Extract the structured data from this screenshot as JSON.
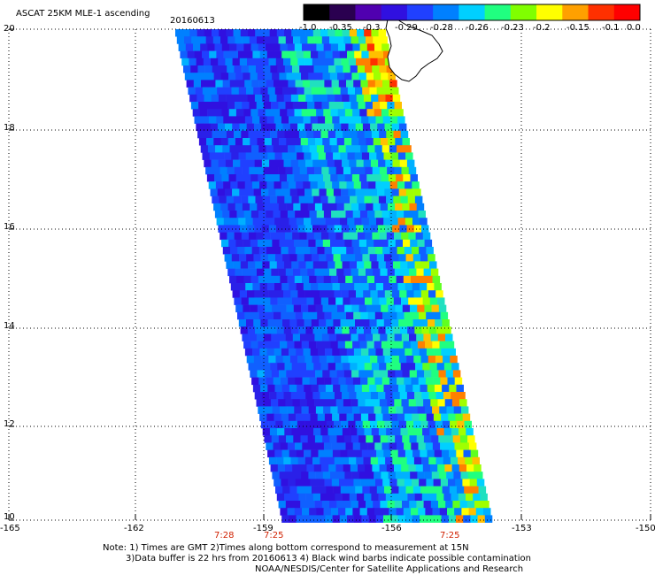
{
  "title": "ASCAT 25KM MLE-1 ascending",
  "date": "20160613",
  "colorbar": {
    "labels": [
      "-1.0",
      "-0.35",
      "-0.3",
      "-0.29",
      "-0.28",
      "-0.26",
      "-0.23",
      "-0.2",
      "-0.15",
      "-0.1",
      "0.0"
    ],
    "colors": [
      "#000000",
      "#2a0050",
      "#5000b0",
      "#3010e0",
      "#2040ff",
      "#0080ff",
      "#00d0ff",
      "#20ff80",
      "#80ff00",
      "#ffff00",
      "#ffa000",
      "#ff3000",
      "#ff0000"
    ]
  },
  "axes": {
    "y_labels": [
      "20",
      "18",
      "16",
      "14",
      "12",
      "10"
    ],
    "x_labels": [
      "-165",
      "-162",
      "-159",
      "-156",
      "-153",
      "-150"
    ]
  },
  "time_labels": [
    "7:28",
    "7:25",
    "7:25"
  ],
  "notes": [
    "Note: 1) Times are GMT 2)Times along bottom correspond to measurement at 15N",
    "3)Data buffer is 22 hrs from 20160613 4) Black wind barbs indicate possible contamination",
    "NOAA/NESDIS/Center for Satellite Applications and Research"
  ]
}
